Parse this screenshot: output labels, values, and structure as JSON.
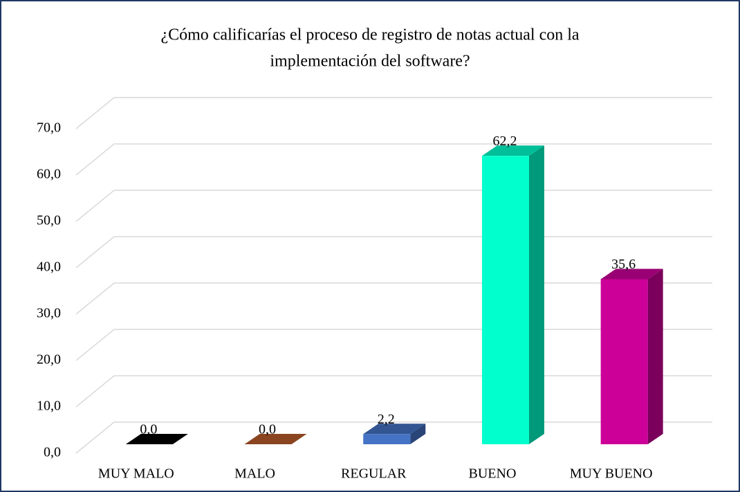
{
  "chart_data": {
    "type": "bar3d",
    "title": [
      "¿Cómo calificarías el proceso de registro de notas actual con la",
      "implementación del software?"
    ],
    "categories": [
      "MUY MALO",
      "MALO",
      "REGULAR",
      "BUENO",
      "MUY BUENO"
    ],
    "values": [
      0.0,
      0.0,
      2.2,
      62.2,
      35.6
    ],
    "value_labels": [
      "0,0",
      "0,0",
      "2,2",
      "62,2",
      "35,6"
    ],
    "colors": [
      "#000000",
      "#b85c2a",
      "#4472c4",
      "#00ffcc",
      "#cc0099"
    ],
    "ylim": [
      0,
      70
    ],
    "yticks": [
      {
        "value": 0,
        "label": "0,0"
      },
      {
        "value": 10,
        "label": "10,0"
      },
      {
        "value": 20,
        "label": "20,0"
      },
      {
        "value": 30,
        "label": "30,0"
      },
      {
        "value": 40,
        "label": "40,0"
      },
      {
        "value": 50,
        "label": "50,0"
      },
      {
        "value": 60,
        "label": "60,0"
      },
      {
        "value": 70,
        "label": "70,0"
      }
    ],
    "grid": true
  }
}
